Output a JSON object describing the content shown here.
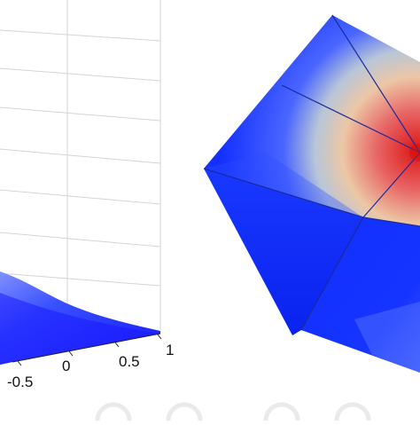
{
  "left_plot": {
    "axis_ticks": [
      "-0.5",
      "0",
      "0.5",
      "1"
    ],
    "surface_colors": {
      "edge": "#1a1aff",
      "mid": "#2d4bff",
      "light": "#7f90ff"
    }
  },
  "right_plot": {
    "colors": {
      "blue": "#1530ff",
      "blue_dark": "#0a22e6",
      "pale": "#d8d8c8",
      "red": "#e32020",
      "line": "#1a2a9a"
    }
  }
}
